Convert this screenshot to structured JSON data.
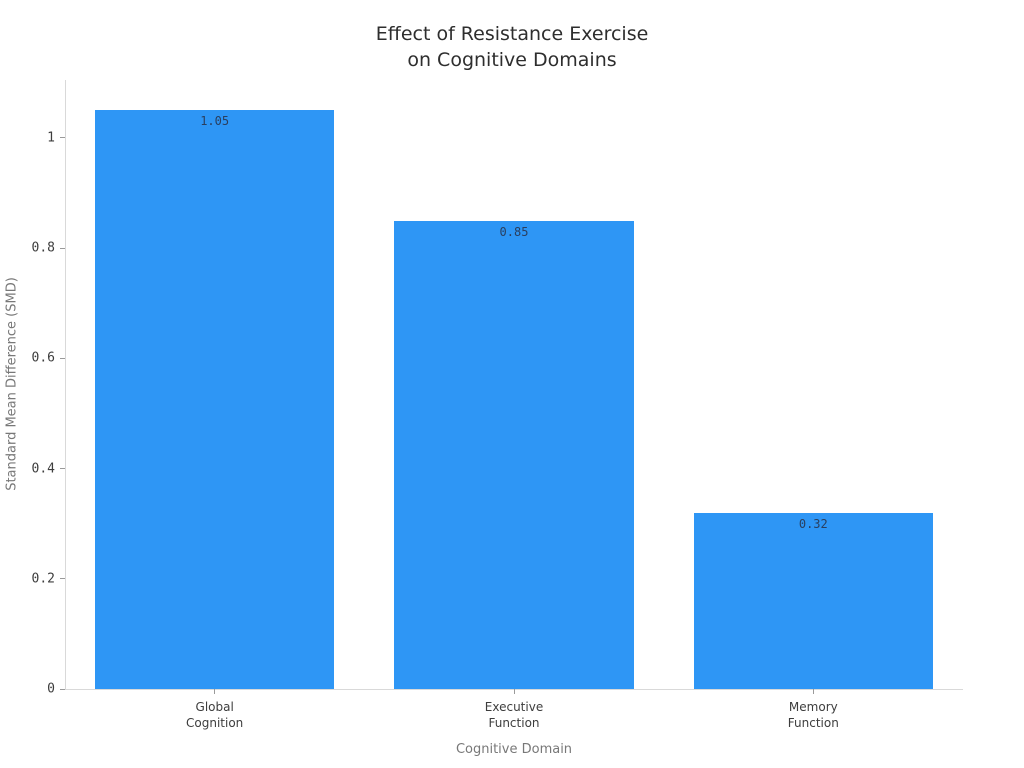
{
  "chart_data": {
    "type": "bar",
    "title": "Effect of Resistance Exercise\non Cognitive Domains",
    "title_lines": [
      "Effect of Resistance Exercise",
      "on Cognitive Domains"
    ],
    "xlabel": "Cognitive Domain",
    "ylabel": "Standard Mean Difference (SMD)",
    "categories": [
      "Global Cognition",
      "Executive Function",
      "Memory Function"
    ],
    "category_lines": [
      [
        "Global",
        "Cognition"
      ],
      [
        "Executive",
        "Function"
      ],
      [
        "Memory",
        "Function"
      ]
    ],
    "values": [
      1.05,
      0.85,
      0.32
    ],
    "value_labels": [
      "1.05",
      "0.85",
      "0.32"
    ],
    "ylim": [
      0,
      1.105
    ],
    "yticks": [
      0,
      0.2,
      0.4,
      0.6,
      0.8,
      1
    ],
    "ytick_labels": [
      "0",
      "0.2",
      "0.4",
      "0.6",
      "0.8",
      "1"
    ],
    "grid": false,
    "legend_position": "none",
    "bar_width_fraction": 0.8,
    "colors": {
      "background": "#ffffff",
      "bar": "#2E96F5",
      "value_label": "#2a3f5f",
      "title": "#2e2e2e",
      "tick_label": "#3d3d3d",
      "axis_title": "#787878",
      "spine": "#d9d9d9",
      "tick_mark": "#9a9a9a"
    }
  }
}
